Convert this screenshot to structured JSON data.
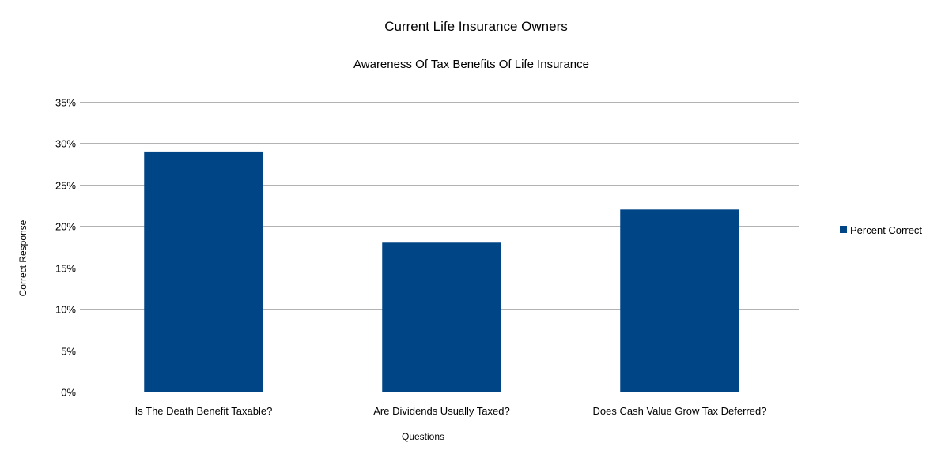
{
  "chart_data": {
    "type": "bar",
    "title": "Current Life Insurance Owners",
    "subtitle": "Awareness Of Tax Benefits Of Life Insurance",
    "xlabel": "Questions",
    "ylabel": "Correct Response",
    "categories": [
      "Is The Death Benefit Taxable?",
      "Are Dividends Usually Taxed?",
      "Does Cash Value Grow Tax Deferred?"
    ],
    "series": [
      {
        "name": "Percent Correct",
        "values": [
          29,
          18,
          22
        ],
        "color": "#004586"
      }
    ],
    "ylim": [
      0,
      35
    ],
    "yticks": [
      0,
      5,
      10,
      15,
      20,
      25,
      30,
      35
    ],
    "ytick_labels": [
      "0%",
      "5%",
      "10%",
      "15%",
      "20%",
      "25%",
      "30%",
      "35%"
    ],
    "grid": true,
    "legend_position": "right"
  }
}
